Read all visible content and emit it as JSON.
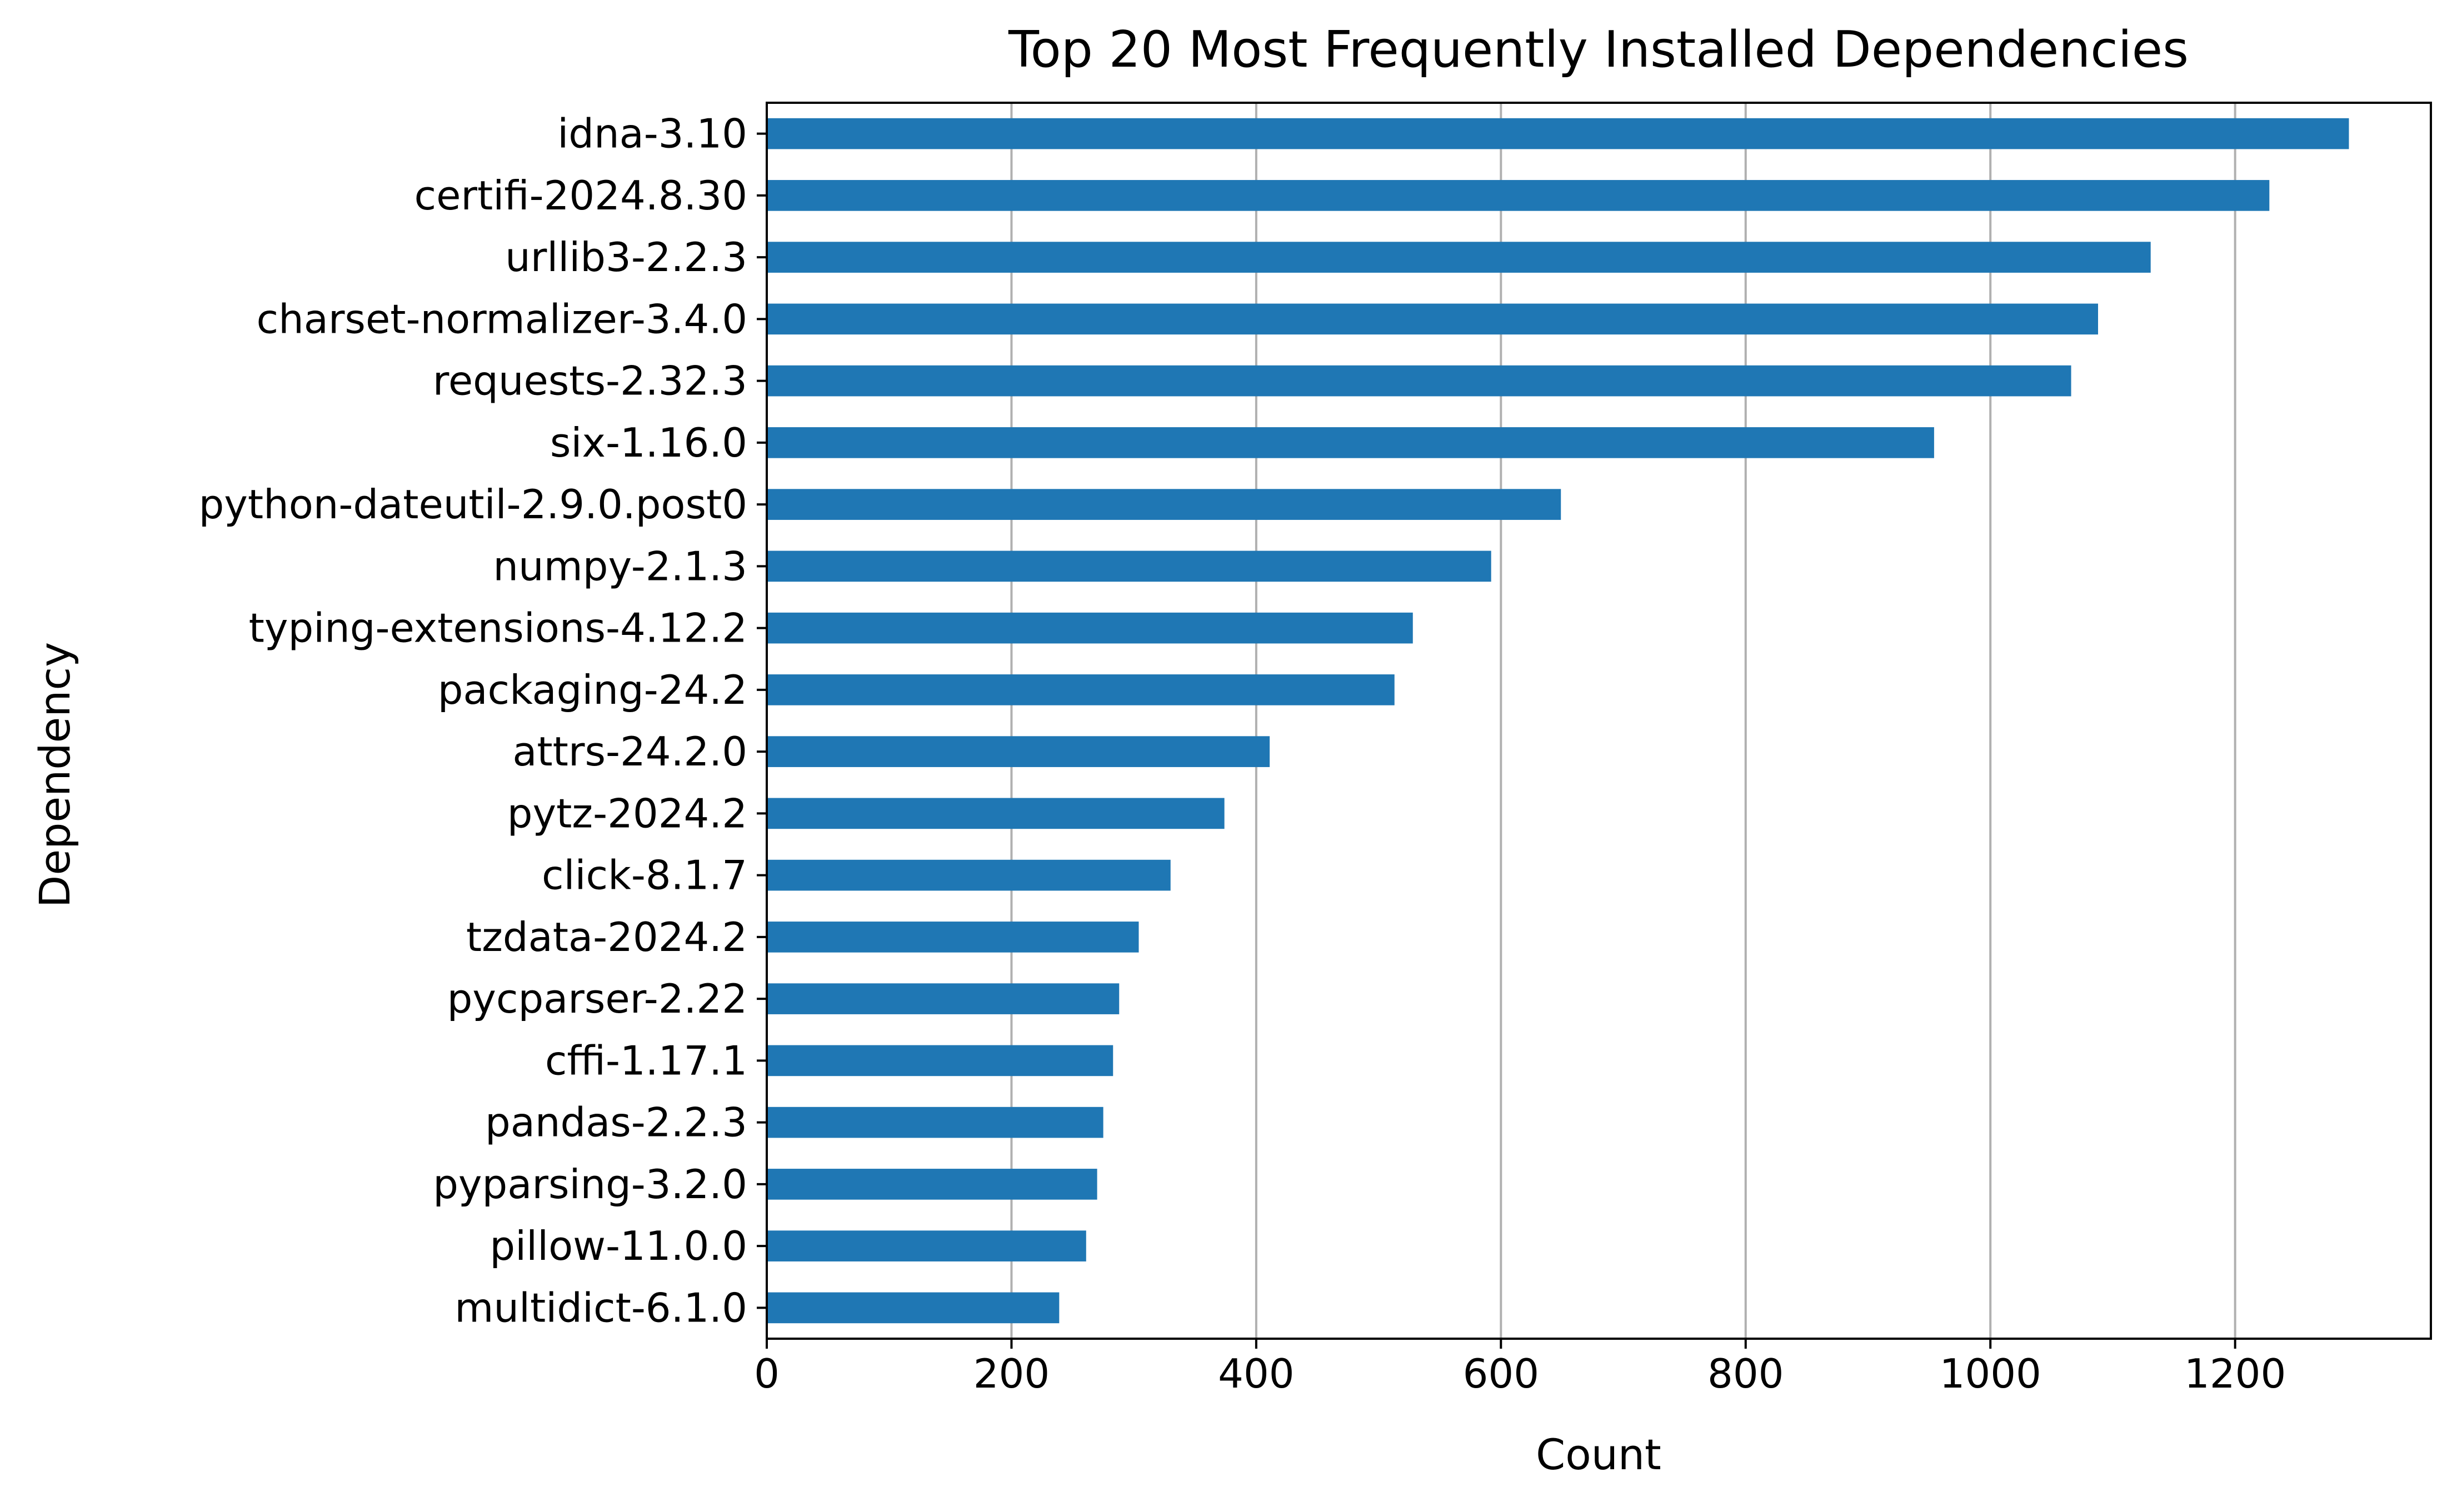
{
  "chart_data": {
    "type": "bar",
    "orientation": "horizontal",
    "title": "Top 20 Most Frequently Installed Dependencies",
    "xlabel": "Count",
    "ylabel": "Dependency",
    "categories": [
      "idna-3.10",
      "certifi-2024.8.30",
      "urllib3-2.2.3",
      "charset-normalizer-3.4.0",
      "requests-2.32.3",
      "six-1.16.0",
      "python-dateutil-2.9.0.post0",
      "numpy-2.1.3",
      "typing-extensions-4.12.2",
      "packaging-24.2",
      "attrs-24.2.0",
      "pytz-2024.2",
      "click-8.1.7",
      "tzdata-2024.2",
      "pycparser-2.22",
      "cffi-1.17.1",
      "pandas-2.2.3",
      "pyparsing-3.2.0",
      "pillow-11.0.0",
      "multidict-6.1.0"
    ],
    "values": [
      1293,
      1228,
      1131,
      1088,
      1066,
      954,
      649,
      592,
      528,
      513,
      411,
      374,
      330,
      304,
      288,
      283,
      275,
      270,
      261,
      239
    ],
    "xlim": [
      0,
      1360
    ],
    "xticks": [
      0,
      200,
      400,
      600,
      800,
      1000,
      1200
    ],
    "grid": "x",
    "legend": "none",
    "colors": {
      "bar": "#1f77b4",
      "grid": "#b0b0b0",
      "axis": "#000000"
    }
  }
}
